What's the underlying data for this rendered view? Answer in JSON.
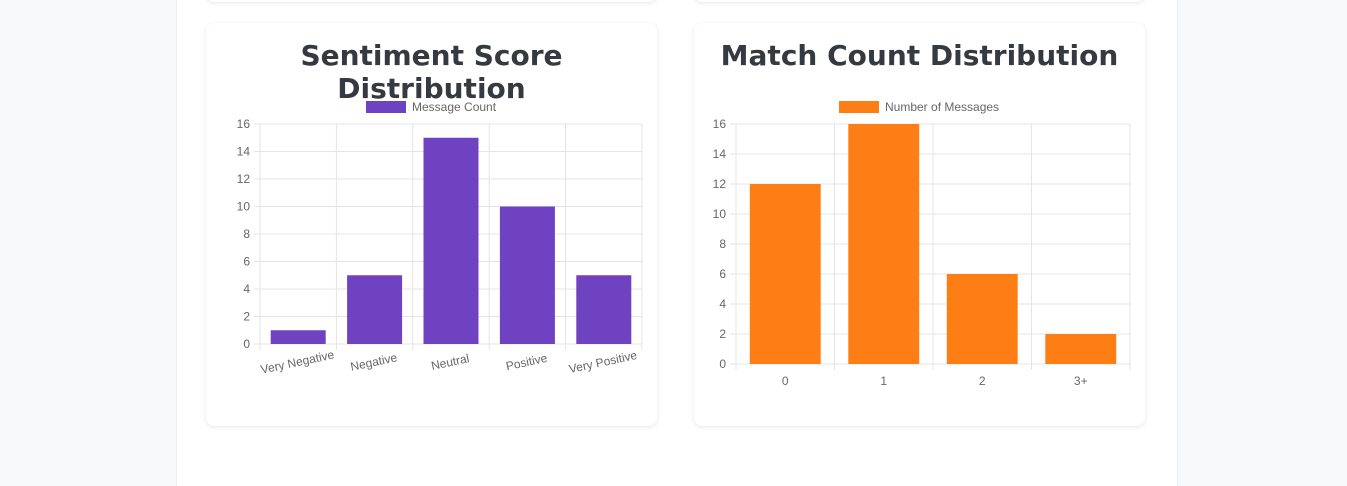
{
  "charts": [
    {
      "title": "Sentiment Score Distribution",
      "color": "#6f42c1",
      "chart_data": {
        "type": "bar",
        "categories": [
          "Very Negative",
          "Negative",
          "Neutral",
          "Positive",
          "Very Positive"
        ],
        "series": [
          {
            "name": "Message Count",
            "values": [
              1,
              5,
              15,
              10,
              5
            ]
          }
        ],
        "ylim": [
          0,
          16
        ],
        "yticks": [
          0,
          2,
          4,
          6,
          8,
          10,
          12,
          14,
          16
        ],
        "legend_position": "top",
        "grid": true,
        "xlabel": "",
        "ylabel": ""
      }
    },
    {
      "title": "Match Count Distribution",
      "color": "#fd7e14",
      "chart_data": {
        "type": "bar",
        "categories": [
          "0",
          "1",
          "2",
          "3+"
        ],
        "series": [
          {
            "name": "Number of Messages",
            "values": [
              12,
              16,
              6,
              2
            ]
          }
        ],
        "ylim": [
          0,
          16
        ],
        "yticks": [
          0,
          2,
          4,
          6,
          8,
          10,
          12,
          14,
          16
        ],
        "legend_position": "top",
        "grid": true,
        "xlabel": "",
        "ylabel": ""
      }
    }
  ]
}
